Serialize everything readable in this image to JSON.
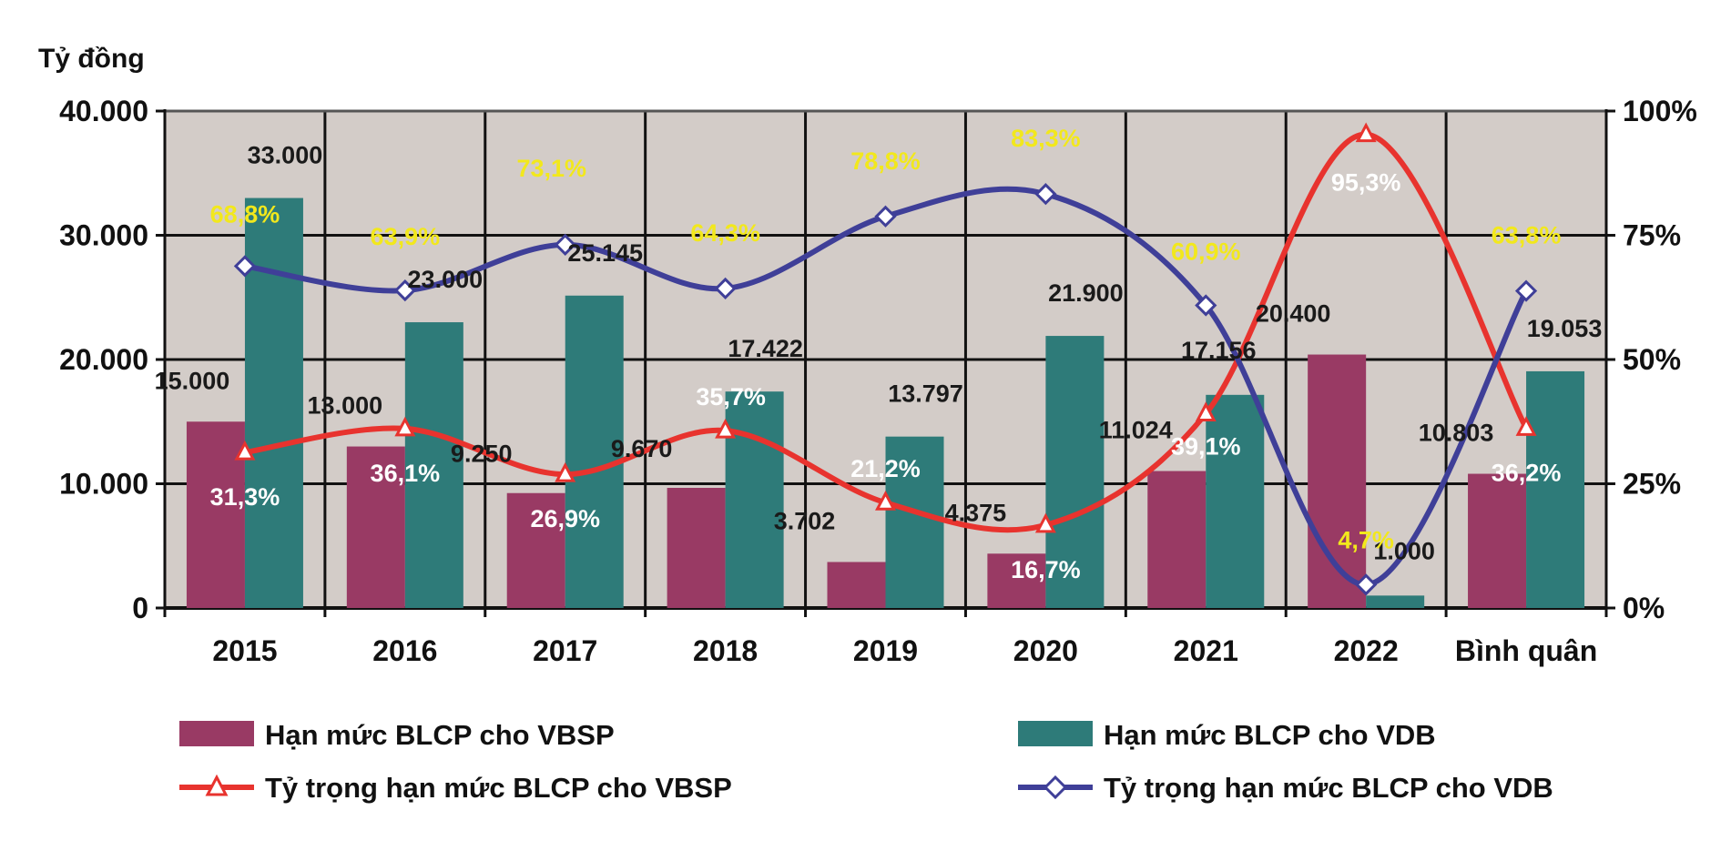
{
  "chart_data": {
    "type": "bar",
    "ylabel": "Tỷ đồng",
    "categories": [
      "2015",
      "2016",
      "2017",
      "2018",
      "2019",
      "2020",
      "2021",
      "2022",
      "Bình quân"
    ],
    "ylim": [
      0,
      40000
    ],
    "y_ticks": [
      "0",
      "10.000",
      "20.000",
      "30.000",
      "40.000"
    ],
    "y_tick_values": [
      0,
      10000,
      20000,
      30000,
      40000
    ],
    "y2lim": [
      0,
      100
    ],
    "y2_ticks": [
      "0%",
      "25%",
      "50%",
      "75%",
      "100%"
    ],
    "y2_tick_values": [
      0,
      25,
      50,
      75,
      100
    ],
    "grid": true,
    "series": [
      {
        "name": "Hạn mức BLCP cho VBSP",
        "kind": "bar",
        "color": "#993a64",
        "values": [
          15000,
          13000,
          9250,
          9670,
          3702,
          4375,
          11024,
          20400,
          10803
        ],
        "labels": [
          "15.000",
          "13.000",
          "9.250",
          "9.670",
          "3.702",
          "4.375",
          "11.024",
          "20.400",
          "10.803"
        ]
      },
      {
        "name": "Hạn mức BLCP cho VDB",
        "kind": "bar",
        "color": "#2e7b79",
        "values": [
          33000,
          23000,
          25145,
          17422,
          13797,
          21900,
          17156,
          1000,
          19053
        ],
        "labels": [
          "33.000",
          "23.000",
          "25.145",
          "17.422",
          "13.797",
          "21.900",
          "17.156",
          "1.000",
          "19.053"
        ]
      },
      {
        "name": "Tỷ trọng hạn mức BLCP cho VBSP",
        "kind": "line",
        "axis": "right",
        "marker": "triangle",
        "color": "#e8332e",
        "values": [
          31.3,
          36.1,
          26.9,
          35.7,
          21.2,
          16.7,
          39.1,
          95.3,
          36.2
        ],
        "labels": [
          "31,3%",
          "36,1%",
          "26,9%",
          "35,7%",
          "21,2%",
          "16,7%",
          "39,1%",
          "95,3%",
          "36,2%"
        ],
        "label_colors": [
          "#ffffff",
          "#ffffff",
          "#ffffff",
          "#ffffff",
          "#ffffff",
          "#ffffff",
          "#ffffff",
          "#ffffff",
          "#ffffff"
        ]
      },
      {
        "name": "Tỷ trọng hạn mức BLCP cho VDB",
        "kind": "line",
        "axis": "right",
        "marker": "diamond",
        "color": "#3f3f98",
        "values": [
          68.8,
          63.9,
          73.1,
          64.3,
          78.8,
          83.3,
          60.9,
          4.7,
          63.8
        ],
        "labels": [
          "68,8%",
          "63,9%",
          "73,1%",
          "64,3%",
          "78,8%",
          "83,3%",
          "60,9%",
          "4,7%",
          "63,8%"
        ],
        "label_colors": [
          "#f2e81c",
          "#f2e81c",
          "#f2e81c",
          "#f2e81c",
          "#f2e81c",
          "#f2e81c",
          "#f2e81c",
          "#f2e81c",
          "#f2e81c"
        ]
      }
    ],
    "plot_background": "#d3ccc8",
    "legend": [
      "Hạn mức BLCP cho VBSP",
      "Hạn mức BLCP cho VDB",
      "Tỷ trọng hạn mức BLCP cho VBSP",
      "Tỷ trọng hạn mức BLCP cho VDB"
    ]
  }
}
